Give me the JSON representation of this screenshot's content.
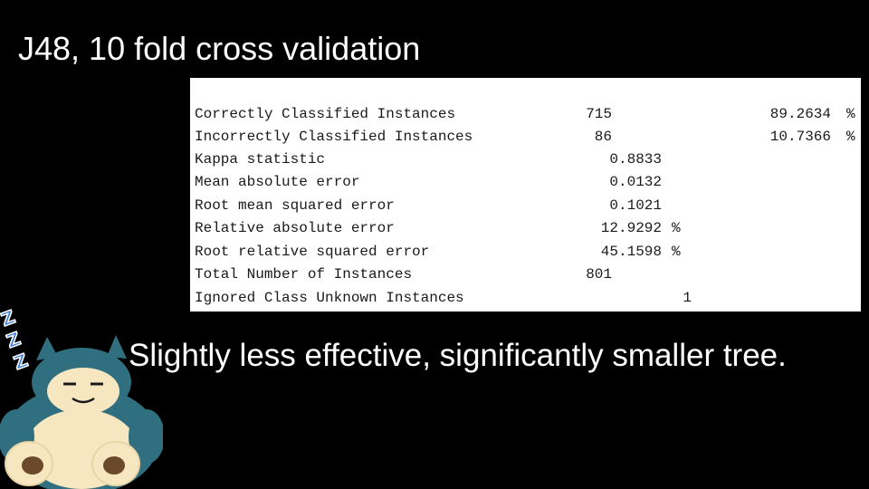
{
  "slide": {
    "title": "J48, 10 fold cross validation",
    "subtitle": "Slightly less effective, significantly smaller tree."
  },
  "results": [
    {
      "label": "Correctly Classified Instances",
      "count": "715",
      "percent": "89.2634",
      "percent_unit": "%"
    },
    {
      "label": "Incorrectly Classified Instances",
      "count": "86",
      "percent": "10.7366",
      "percent_unit": "%"
    },
    {
      "label": "Kappa statistic",
      "value": "0.8833"
    },
    {
      "label": "Mean absolute error",
      "value": "0.0132"
    },
    {
      "label": "Root mean squared error",
      "value": "0.1021"
    },
    {
      "label": "Relative absolute error",
      "value": "12.9292",
      "unit": "%"
    },
    {
      "label": "Root relative squared error",
      "value": "45.1598",
      "unit": "%"
    },
    {
      "label": "Total Number of Instances",
      "count": "801"
    },
    {
      "label": "Ignored Class Unknown Instances",
      "small": "1"
    }
  ],
  "mascot": {
    "icon": "snorlax-icon",
    "sleep_letters": [
      "Z",
      "Z",
      "Z"
    ],
    "colors": {
      "body": "#2f6f7f",
      "belly": "#f6e7c1",
      "sleep": "#3a7bd5"
    }
  }
}
